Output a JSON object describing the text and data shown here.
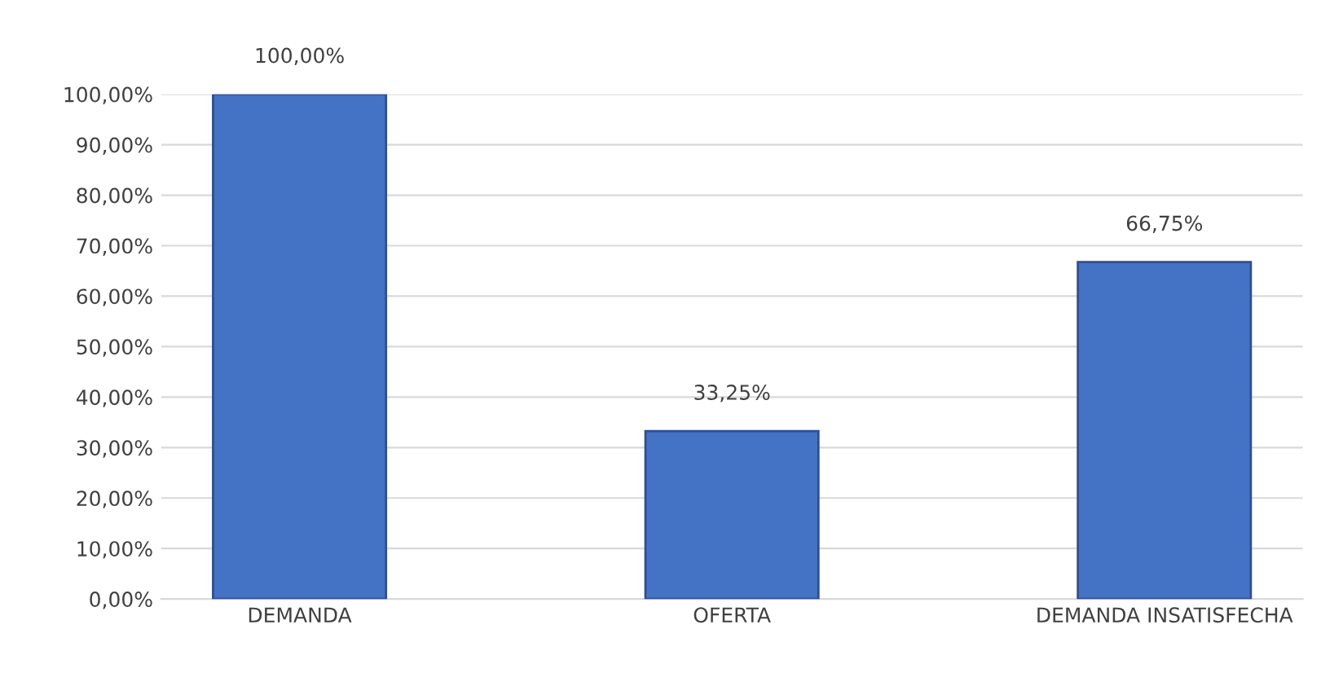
{
  "chart_data": {
    "type": "bar",
    "categories": [
      "DEMANDA",
      "OFERTA",
      "DEMANDA INSATISFECHA"
    ],
    "values": [
      100,
      33.25,
      66.75
    ],
    "color": "#4472c4",
    "value_labels": [
      "100,00%",
      "33,25%",
      "66,75%"
    ],
    "ylim": [
      0,
      100
    ],
    "yticks": [
      {
        "value": 0,
        "label": "0,00%"
      },
      {
        "value": 10,
        "label": "10,00%"
      },
      {
        "value": 20,
        "label": "20,00%"
      },
      {
        "value": 30,
        "label": "30,00%"
      },
      {
        "value": 40,
        "label": "40,00%"
      },
      {
        "value": 50,
        "label": "50,00%"
      },
      {
        "value": 60,
        "label": "60,00%"
      },
      {
        "value": 70,
        "label": "70,00%"
      },
      {
        "value": 80,
        "label": "80,00%"
      },
      {
        "value": 90,
        "label": "90,00%"
      },
      {
        "value": 100,
        "label": "100,00%"
      }
    ],
    "grid": "y",
    "legend": false
  }
}
